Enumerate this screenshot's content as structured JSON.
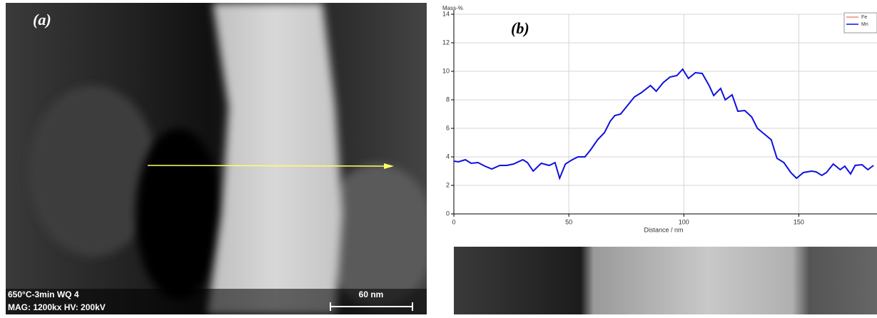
{
  "image_a": {
    "panel_label": "(a)",
    "caption_line1": "650°C-3min WQ 4",
    "caption_line2": "MAG: 1200kx   HV: 200kV",
    "scale_bar": "60 nm"
  },
  "chart_data": {
    "type": "line",
    "panel_label": "(b)",
    "y_label": "Mass-%",
    "x_label": "Distance / nm",
    "x": [
      0,
      2,
      5,
      7.5,
      10.5,
      13.5,
      16.5,
      20,
      23,
      26,
      30,
      32,
      34.5,
      38,
      41.5,
      44,
      46,
      48.5,
      51.5,
      54,
      57,
      59.5,
      62.5,
      65.5,
      68,
      70,
      72.5,
      75,
      78.5,
      81.5,
      85.5,
      88,
      91,
      94,
      97,
      99.5,
      102,
      105,
      108,
      111,
      113,
      116,
      118,
      121,
      123.5,
      126.5,
      129.5,
      132,
      135,
      138,
      140.5,
      143.5,
      146.5,
      149,
      152,
      155.5,
      157.5,
      160,
      162,
      165,
      168,
      170,
      172.5,
      174.5,
      177.5,
      180,
      182.5
    ],
    "series": [
      {
        "name": "Fe",
        "color": "#f08a78",
        "values": [
          null,
          null,
          null,
          null,
          null,
          null,
          null,
          null,
          null,
          null,
          null,
          null,
          null,
          null,
          null,
          null,
          null,
          null,
          null,
          null,
          null,
          null,
          null,
          null,
          null,
          null,
          null,
          null,
          null,
          null,
          null,
          null,
          null,
          null,
          null,
          null,
          null,
          null,
          null,
          null,
          null,
          null,
          null,
          null,
          null,
          null,
          null,
          null,
          null,
          null,
          null,
          null,
          null,
          null,
          null,
          null,
          null,
          null,
          null,
          null,
          null,
          null,
          null,
          null,
          null,
          null,
          null
        ]
      },
      {
        "name": "Mn",
        "color": "#1010e0",
        "values": [
          3.7,
          3.65,
          3.8,
          3.55,
          3.6,
          3.35,
          3.15,
          3.4,
          3.4,
          3.5,
          3.8,
          3.6,
          3.0,
          3.55,
          3.4,
          3.6,
          2.5,
          3.5,
          3.8,
          4.0,
          4.0,
          4.5,
          5.2,
          5.7,
          6.5,
          6.9,
          7.0,
          7.5,
          8.2,
          8.5,
          9.0,
          8.6,
          9.2,
          9.6,
          9.7,
          10.15,
          9.5,
          9.9,
          9.85,
          9.0,
          8.3,
          8.8,
          8.0,
          8.35,
          7.2,
          7.25,
          6.8,
          6.0,
          5.6,
          5.2,
          3.9,
          3.6,
          2.9,
          2.5,
          2.9,
          3.0,
          2.95,
          2.7,
          2.9,
          3.5,
          3.1,
          3.35,
          2.8,
          3.4,
          3.45,
          3.1,
          3.4
        ]
      }
    ],
    "xlim": [
      0,
      184
    ],
    "ylim": [
      0,
      14
    ],
    "xticks": [
      0,
      50,
      100,
      150
    ],
    "yticks": [
      0,
      2,
      4,
      6,
      8,
      10,
      12,
      14
    ],
    "grid": true,
    "legend": "top-right"
  }
}
